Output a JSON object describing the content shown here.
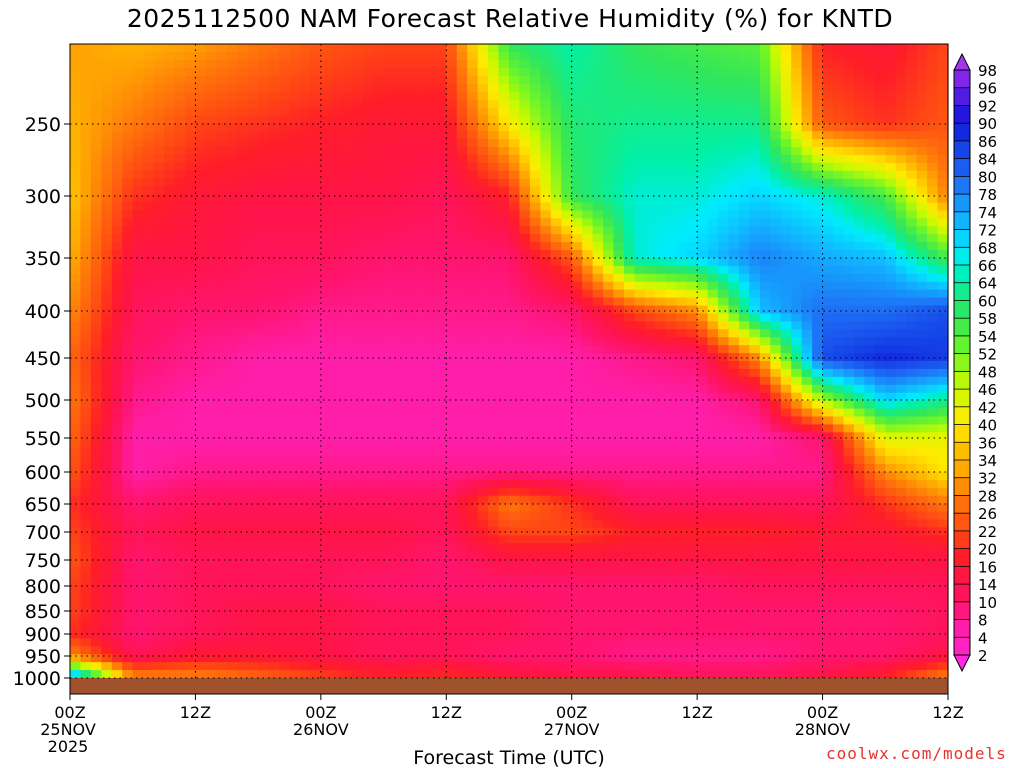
{
  "title": "2025112500 NAM Forecast Relative Humidity (%) for KNTD",
  "watermark": "coolwx.com/models",
  "chart_data": {
    "type": "heatmap",
    "variable": "Relative Humidity (%)",
    "xlabel": "Forecast Time (UTC)",
    "ylabel": "",
    "x_ticks": [
      {
        "hour": 0,
        "lines": [
          "00Z",
          "25NOV",
          "2025"
        ]
      },
      {
        "hour": 12,
        "lines": [
          "12Z"
        ]
      },
      {
        "hour": 24,
        "lines": [
          "00Z",
          "26NOV"
        ]
      },
      {
        "hour": 36,
        "lines": [
          "12Z"
        ]
      },
      {
        "hour": 48,
        "lines": [
          "00Z",
          "27NOV"
        ]
      },
      {
        "hour": 60,
        "lines": [
          "12Z"
        ]
      },
      {
        "hour": 72,
        "lines": [
          "00Z",
          "28NOV"
        ]
      },
      {
        "hour": 84,
        "lines": [
          "12Z"
        ]
      }
    ],
    "xlim_hours": [
      0,
      84
    ],
    "y_ticks": [
      "250",
      "300",
      "350",
      "400",
      "450",
      "500",
      "550",
      "600",
      "650",
      "700",
      "750",
      "800",
      "850",
      "900",
      "950",
      "1000"
    ],
    "ylim_hPa": [
      1000,
      200
    ],
    "grid": true,
    "colorbar_labels": [
      "98",
      "96",
      "92",
      "90",
      "86",
      "84",
      "80",
      "78",
      "74",
      "72",
      "68",
      "66",
      "64",
      "60",
      "58",
      "54",
      "52",
      "48",
      "46",
      "42",
      "40",
      "36",
      "34",
      "32",
      "28",
      "26",
      "22",
      "20",
      "16",
      "14",
      "10",
      "8",
      "4",
      "2"
    ],
    "colors": {
      "low": "#ff2ad0",
      "mid_low": "#ff1466",
      "dry_edge": "#ff3a1e",
      "orange": "#ff7a10",
      "yellow": "#ffee00",
      "green": "#47f05a",
      "cyan": "#00ecff",
      "blue": "#1c70f0",
      "deep_blue": "#1010e0",
      "violet": "#b83cf0",
      "ground": "#a0522d"
    },
    "rh_profile_time_hours": [
      0,
      6,
      12,
      18,
      24,
      30,
      36,
      42,
      48,
      54,
      60,
      66,
      72,
      78,
      84
    ],
    "rh_profile_levels_hPa": [
      1000,
      950,
      900,
      850,
      800,
      750,
      700,
      650,
      600,
      550,
      500,
      450,
      400,
      350,
      300,
      250,
      200
    ],
    "rh_profile": [
      [
        80,
        30,
        20,
        22,
        22,
        24,
        22,
        20,
        24,
        26,
        28,
        26,
        30,
        34,
        36,
        34,
        32
      ],
      [
        30,
        12,
        10,
        10,
        10,
        10,
        12,
        10,
        6,
        6,
        8,
        10,
        12,
        14,
        20,
        28,
        34
      ],
      [
        30,
        16,
        12,
        12,
        12,
        12,
        14,
        12,
        8,
        6,
        6,
        8,
        10,
        14,
        16,
        22,
        32
      ],
      [
        26,
        16,
        14,
        14,
        12,
        12,
        14,
        12,
        8,
        6,
        6,
        6,
        10,
        12,
        14,
        20,
        28
      ],
      [
        22,
        14,
        14,
        14,
        12,
        12,
        14,
        12,
        8,
        6,
        6,
        6,
        8,
        12,
        14,
        18,
        24
      ],
      [
        18,
        12,
        12,
        12,
        10,
        12,
        14,
        12,
        8,
        6,
        6,
        6,
        8,
        10,
        14,
        16,
        22
      ],
      [
        20,
        12,
        12,
        12,
        10,
        10,
        12,
        12,
        8,
        6,
        6,
        6,
        8,
        10,
        12,
        16,
        22
      ],
      [
        16,
        10,
        12,
        12,
        10,
        14,
        22,
        28,
        8,
        6,
        6,
        6,
        8,
        10,
        18,
        40,
        58
      ],
      [
        14,
        10,
        10,
        10,
        10,
        14,
        22,
        20,
        8,
        6,
        6,
        6,
        10,
        24,
        58,
        60,
        64
      ],
      [
        14,
        8,
        10,
        10,
        10,
        14,
        18,
        12,
        8,
        6,
        6,
        8,
        22,
        66,
        66,
        62,
        58
      ],
      [
        12,
        8,
        10,
        10,
        10,
        14,
        18,
        12,
        8,
        6,
        6,
        10,
        30,
        70,
        66,
        62,
        56
      ],
      [
        12,
        8,
        10,
        10,
        12,
        14,
        18,
        12,
        8,
        6,
        10,
        30,
        72,
        78,
        70,
        62,
        54
      ],
      [
        14,
        10,
        10,
        10,
        12,
        14,
        16,
        12,
        8,
        10,
        48,
        84,
        80,
        74,
        66,
        24,
        18
      ],
      [
        18,
        10,
        10,
        10,
        12,
        14,
        16,
        20,
        30,
        44,
        70,
        88,
        80,
        72,
        56,
        20,
        16
      ],
      [
        30,
        14,
        12,
        12,
        12,
        14,
        20,
        28,
        40,
        42,
        62,
        86,
        84,
        56,
        28,
        24,
        22
      ]
    ]
  }
}
